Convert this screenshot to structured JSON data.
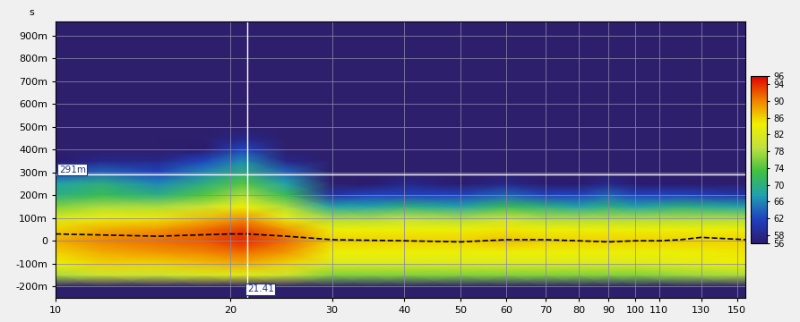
{
  "chart_data": {
    "type": "heatmap",
    "y_label": "s",
    "log": "x",
    "grid": true,
    "xlim": [
      10,
      155
    ],
    "xticks": [
      10,
      20,
      30,
      40,
      50,
      60,
      70,
      80,
      90,
      100,
      110,
      130,
      150
    ],
    "ylim": [
      -0.25,
      0.96
    ],
    "yticks": [
      {
        "value": -0.2,
        "label": "-200m"
      },
      {
        "value": -0.1,
        "label": "-100m"
      },
      0,
      {
        "value": 0.1,
        "label": "100m"
      },
      {
        "value": 0.2,
        "label": "200m"
      },
      {
        "value": 0.3,
        "label": "300m"
      },
      {
        "value": 0.4,
        "label": "400m"
      },
      {
        "value": 0.5,
        "label": "500m"
      },
      {
        "value": 0.6,
        "label": "600m"
      },
      {
        "value": 0.7,
        "label": "700m"
      },
      {
        "value": 0.8,
        "label": "800m"
      },
      {
        "value": 0.9,
        "label": "900m"
      }
    ],
    "cells": {
      "x": [
        10,
        12,
        15,
        18,
        21,
        25,
        30,
        35,
        40,
        50,
        60,
        70,
        80,
        90,
        100,
        120,
        155
      ],
      "y": [
        -0.25,
        -0.2,
        -0.15,
        -0.1,
        -0.05,
        0,
        0.05,
        0.1,
        0.15,
        0.2,
        0.25,
        0.3,
        0.35,
        0.4,
        0.45,
        0.5,
        0.6,
        0.96
      ],
      "values": [
        [
          50,
          50,
          50,
          50,
          50,
          50,
          50,
          50,
          50,
          50,
          50,
          50,
          50,
          50,
          50,
          50,
          50
        ],
        [
          54,
          54,
          54,
          54,
          54,
          54,
          54,
          54,
          54,
          54,
          54,
          54,
          54,
          54,
          54,
          54,
          54
        ],
        [
          78,
          80,
          80,
          81,
          82,
          80,
          76,
          76,
          76,
          76,
          76,
          76,
          76,
          76,
          76,
          77,
          78
        ],
        [
          84,
          86,
          86,
          87,
          88,
          86,
          82,
          82,
          82,
          82,
          82,
          82,
          82,
          82,
          82,
          83,
          84
        ],
        [
          86,
          88,
          89,
          90,
          91,
          89,
          84,
          84,
          84,
          84,
          84,
          84,
          84,
          84,
          84,
          84,
          85
        ],
        [
          88,
          90,
          91,
          92,
          94,
          91,
          86,
          86,
          86,
          86,
          87,
          86,
          86,
          86,
          86,
          86,
          86
        ],
        [
          86,
          88,
          89,
          91,
          93,
          89,
          84,
          84,
          84,
          84,
          85,
          84,
          84,
          84,
          84,
          84,
          84
        ],
        [
          82,
          84,
          85,
          87,
          89,
          84,
          78,
          78,
          79,
          78,
          80,
          78,
          78,
          78,
          78,
          78,
          78
        ],
        [
          76,
          78,
          78,
          80,
          84,
          78,
          68,
          68,
          70,
          68,
          72,
          70,
          68,
          70,
          68,
          70,
          68
        ],
        [
          70,
          72,
          70,
          74,
          78,
          72,
          60,
          62,
          62,
          62,
          64,
          62,
          62,
          64,
          62,
          62,
          60
        ],
        [
          68,
          70,
          66,
          70,
          74,
          68,
          54,
          56,
          58,
          56,
          58,
          56,
          56,
          58,
          56,
          56,
          54
        ],
        [
          62,
          64,
          62,
          66,
          70,
          64,
          50,
          50,
          52,
          52,
          52,
          52,
          52,
          52,
          52,
          52,
          50
        ],
        [
          56,
          58,
          58,
          62,
          66,
          58,
          50,
          50,
          50,
          50,
          50,
          50,
          50,
          50,
          50,
          50,
          50
        ],
        [
          50,
          50,
          52,
          56,
          62,
          54,
          50,
          50,
          50,
          50,
          50,
          50,
          50,
          50,
          50,
          50,
          50
        ],
        [
          50,
          50,
          50,
          50,
          58,
          50,
          50,
          50,
          50,
          50,
          50,
          50,
          50,
          50,
          50,
          50,
          50
        ],
        [
          50,
          50,
          50,
          50,
          54,
          50,
          50,
          50,
          50,
          50,
          50,
          50,
          50,
          50,
          50,
          50,
          50
        ],
        [
          50,
          50,
          50,
          50,
          50,
          50,
          50,
          50,
          50,
          50,
          50,
          50,
          50,
          50,
          50,
          50,
          50
        ],
        [
          50,
          50,
          50,
          50,
          50,
          50,
          50,
          50,
          50,
          50,
          50,
          50,
          50,
          50,
          50,
          50,
          50
        ]
      ]
    },
    "colorbar": {
      "range": [
        56,
        96
      ],
      "ticks": [
        56,
        58,
        62,
        66,
        70,
        74,
        78,
        82,
        86,
        90,
        94,
        96
      ]
    },
    "series": [
      {
        "x": [
          10,
          15,
          20,
          21.41,
          25,
          30,
          40,
          50,
          60,
          70,
          80,
          90,
          100,
          110,
          120,
          130,
          155
        ],
        "values": [
          0.03,
          0.02,
          0.03,
          0.03,
          0.02,
          0.005,
          0.0,
          -0.005,
          0.005,
          0.005,
          0.0,
          -0.005,
          0.0,
          0.0,
          0.005,
          0.015,
          0.005
        ],
        "color": "#000000",
        "line_style": "dashed"
      }
    ],
    "cursor": {
      "x": {
        "value": 21.41,
        "label": "21.41"
      },
      "y": {
        "value": 0.291,
        "label": "291m"
      }
    }
  }
}
